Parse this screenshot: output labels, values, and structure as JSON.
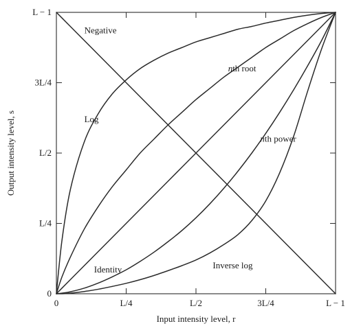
{
  "chart_data": {
    "type": "line",
    "title": "",
    "xlabel": "Input intensity level, r",
    "ylabel": "Output intensity level, s",
    "xlim": [
      0,
      1
    ],
    "ylim": [
      0,
      1
    ],
    "grid": false,
    "x_ticks": [
      {
        "value": 0,
        "label": "0"
      },
      {
        "value": 0.25,
        "label": "L/4"
      },
      {
        "value": 0.5,
        "label": "L/2"
      },
      {
        "value": 0.75,
        "label": "3L/4"
      },
      {
        "value": 1,
        "label": "L − 1"
      }
    ],
    "y_ticks": [
      {
        "value": 0,
        "label": "0"
      },
      {
        "value": 0.25,
        "label": "L/4"
      },
      {
        "value": 0.5,
        "label": "L/2"
      },
      {
        "value": 0.75,
        "label": "3L/4"
      },
      {
        "value": 1,
        "label": "L − 1"
      }
    ],
    "x": [
      0,
      0.02,
      0.05,
      0.1,
      0.15,
      0.2,
      0.25,
      0.3,
      0.35,
      0.4,
      0.45,
      0.5,
      0.55,
      0.6,
      0.65,
      0.7,
      0.75,
      0.8,
      0.85,
      0.9,
      0.95,
      1
    ],
    "series": [
      {
        "name": "Negative",
        "values": [
          1,
          0.98,
          0.95,
          0.9,
          0.85,
          0.8,
          0.75,
          0.7,
          0.65,
          0.6,
          0.55,
          0.5,
          0.45,
          0.4,
          0.35,
          0.3,
          0.25,
          0.2,
          0.15,
          0.1,
          0.05,
          0
        ]
      },
      {
        "name": "Log",
        "values": [
          0,
          0.19,
          0.37,
          0.54,
          0.64,
          0.71,
          0.76,
          0.8,
          0.83,
          0.855,
          0.875,
          0.895,
          0.91,
          0.925,
          0.94,
          0.95,
          0.962,
          0.972,
          0.982,
          0.99,
          0.996,
          1
        ]
      },
      {
        "name": "nth root",
        "values": [
          0,
          0.06,
          0.13,
          0.23,
          0.31,
          0.38,
          0.44,
          0.5,
          0.55,
          0.6,
          0.645,
          0.69,
          0.73,
          0.77,
          0.805,
          0.84,
          0.875,
          0.905,
          0.935,
          0.96,
          0.982,
          1
        ]
      },
      {
        "name": "Identity",
        "values": [
          0,
          0.02,
          0.05,
          0.1,
          0.15,
          0.2,
          0.25,
          0.3,
          0.35,
          0.4,
          0.45,
          0.5,
          0.55,
          0.6,
          0.65,
          0.7,
          0.75,
          0.8,
          0.85,
          0.9,
          0.95,
          1
        ]
      },
      {
        "name": "nth power",
        "values": [
          0,
          0.002,
          0.007,
          0.02,
          0.038,
          0.06,
          0.085,
          0.115,
          0.148,
          0.185,
          0.225,
          0.27,
          0.32,
          0.375,
          0.435,
          0.5,
          0.57,
          0.645,
          0.725,
          0.81,
          0.9,
          1
        ]
      },
      {
        "name": "Inverse log",
        "values": [
          0,
          0,
          0.002,
          0.008,
          0.016,
          0.026,
          0.037,
          0.05,
          0.065,
          0.082,
          0.1,
          0.12,
          0.145,
          0.175,
          0.21,
          0.26,
          0.33,
          0.43,
          0.56,
          0.72,
          0.87,
          1
        ]
      }
    ],
    "annotations": [
      {
        "text": "Negative",
        "x": 0.1,
        "y": 0.935
      },
      {
        "text": "nth root",
        "x": 0.615,
        "y": 0.8
      },
      {
        "text": "Log",
        "x": 0.1,
        "y": 0.62
      },
      {
        "text": "nth power",
        "x": 0.73,
        "y": 0.55
      },
      {
        "text": "Identity",
        "x": 0.135,
        "y": 0.085
      },
      {
        "text": "Inverse log",
        "x": 0.56,
        "y": 0.1
      }
    ]
  }
}
